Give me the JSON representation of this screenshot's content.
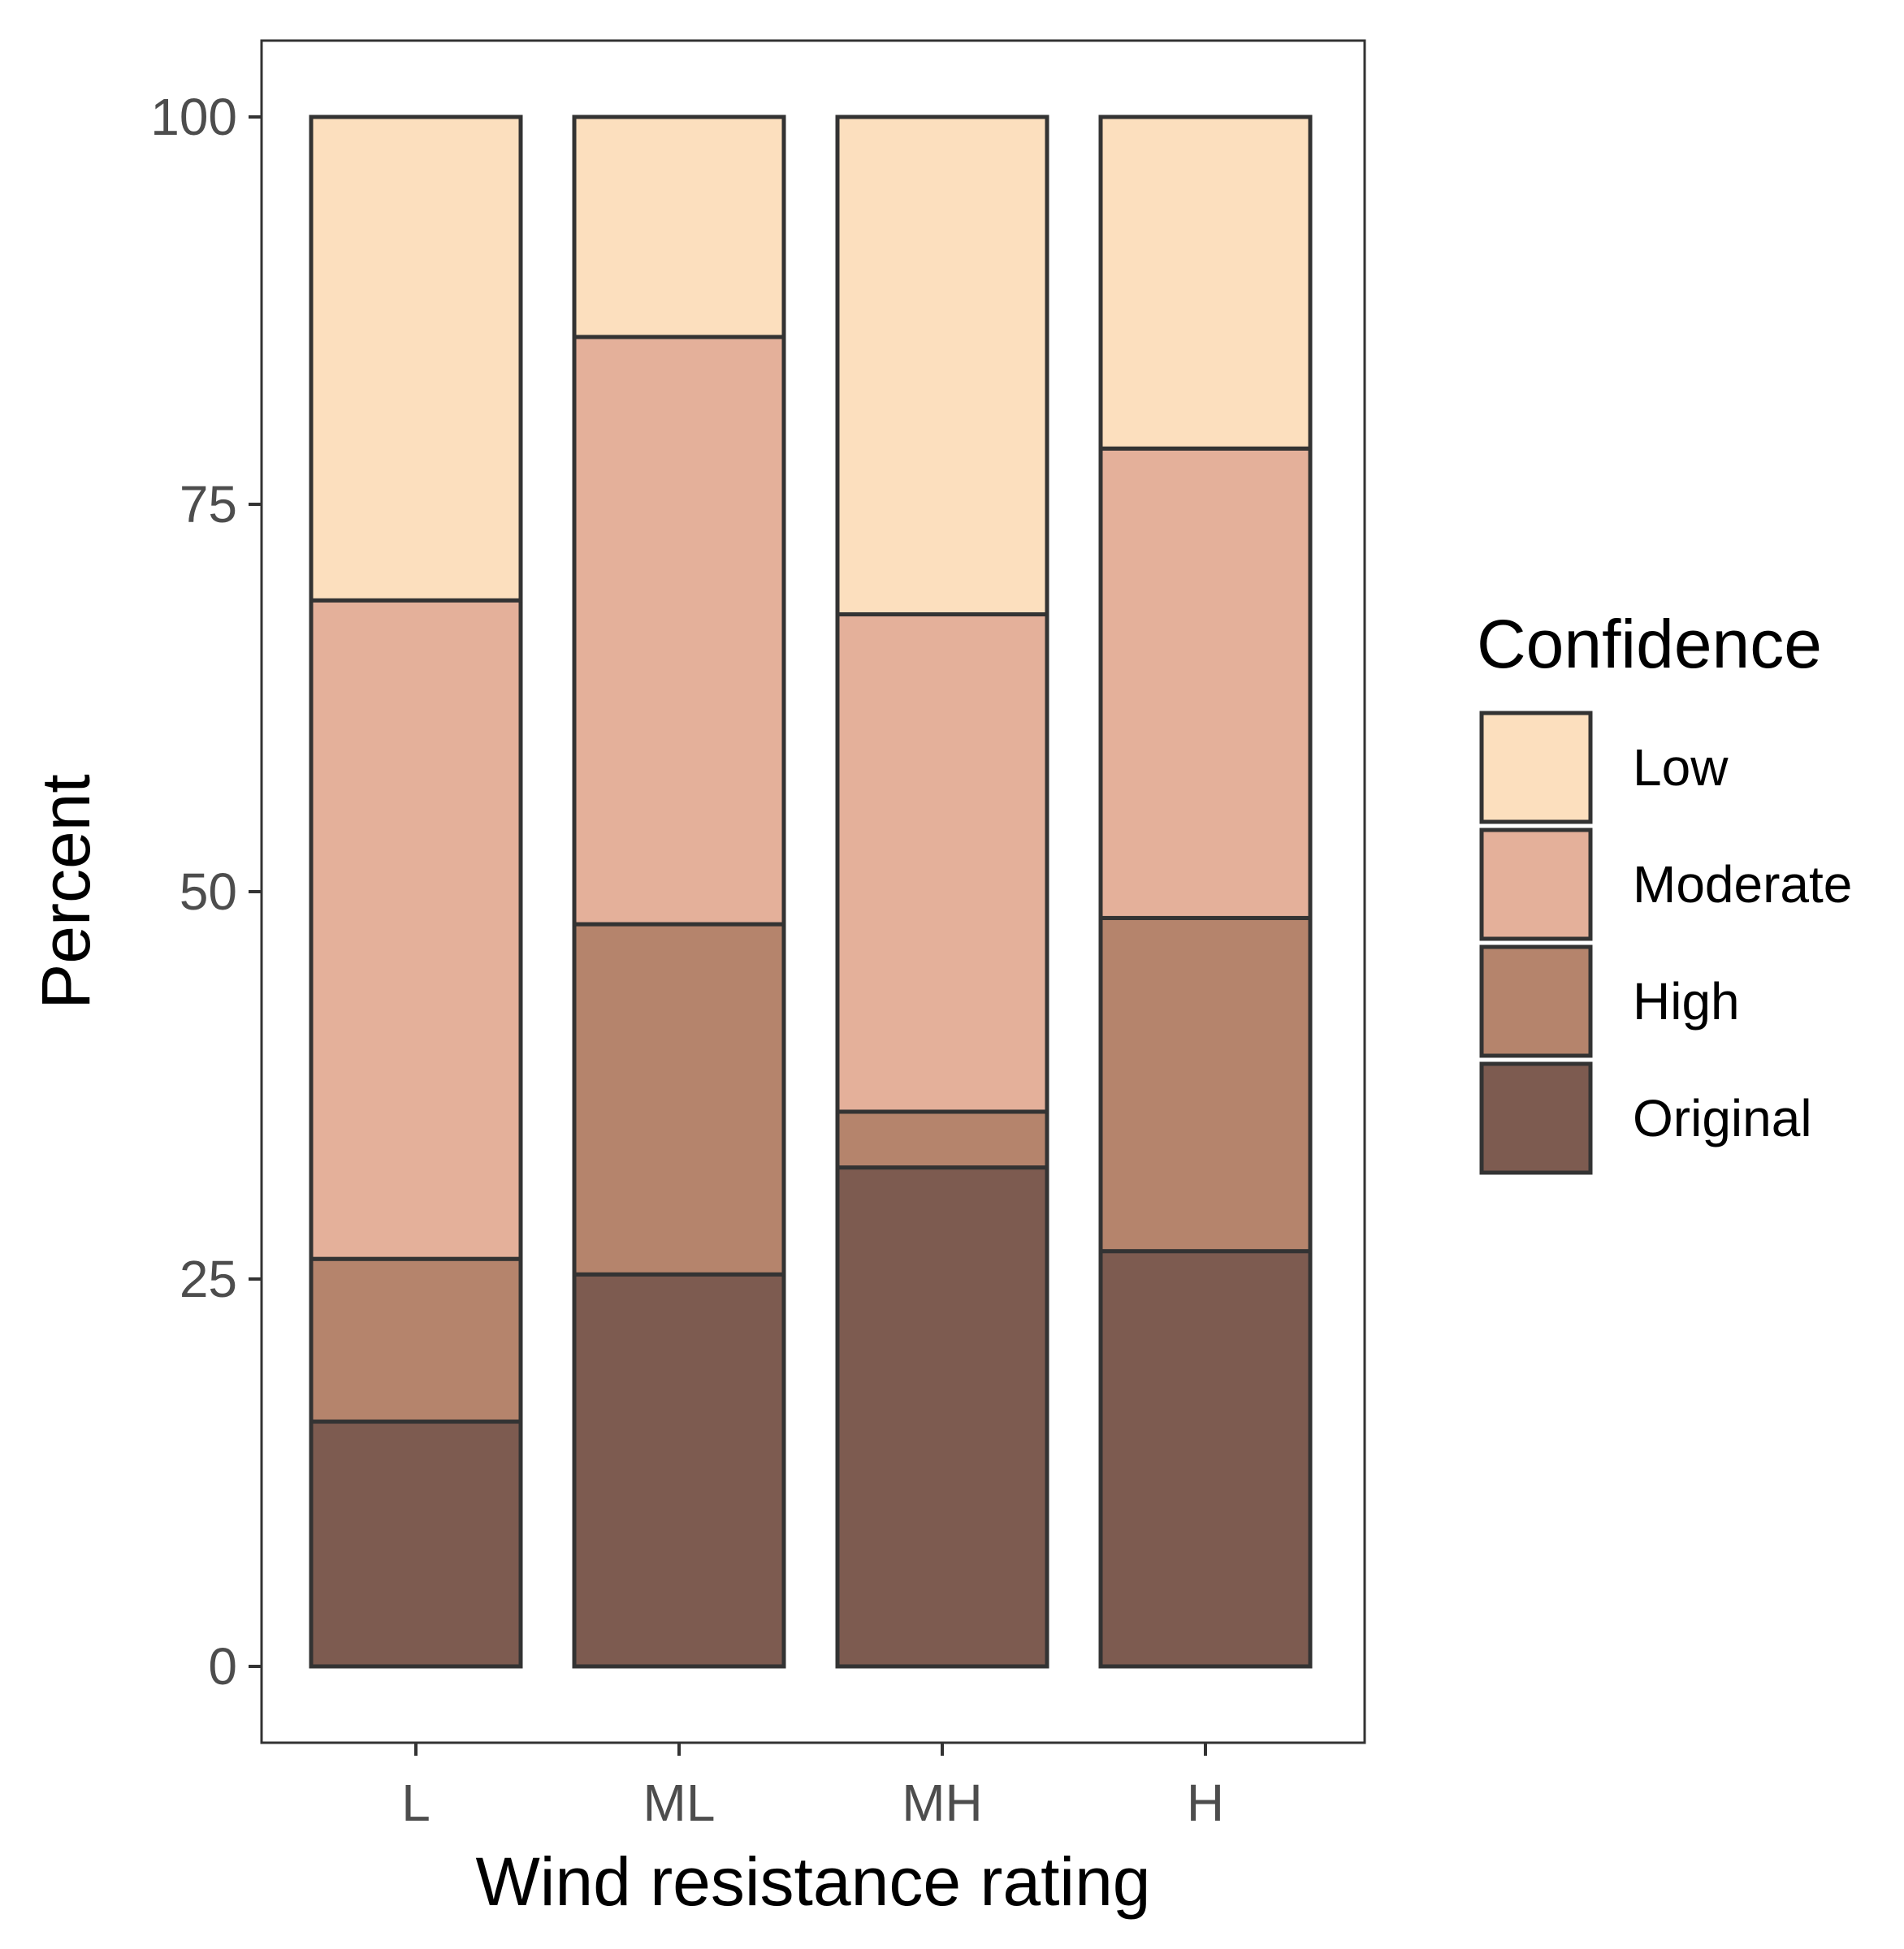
{
  "chart_data": {
    "type": "bar",
    "stacked": true,
    "categories": [
      "L",
      "ML",
      "MH",
      "H"
    ],
    "xlabel": "Wind resistance rating",
    "ylabel": "Percent",
    "ylim": [
      0,
      100
    ],
    "yticks": [
      0,
      25,
      50,
      75,
      100
    ],
    "grid": false,
    "legend": {
      "title": "Confidence",
      "placement": "right",
      "order": [
        "Low",
        "Moderate",
        "High",
        "Original"
      ]
    },
    "series": [
      {
        "name": "Original",
        "color": "#7d5b50",
        "values": [
          15.8,
          25.3,
          32.2,
          26.8
        ]
      },
      {
        "name": "High",
        "color": "#b5846c",
        "values": [
          10.5,
          22.6,
          3.6,
          21.5
        ]
      },
      {
        "name": "Moderate",
        "color": "#e4b09a",
        "values": [
          42.5,
          37.9,
          32.1,
          30.3
        ]
      },
      {
        "name": "Low",
        "color": "#fcdfbe",
        "values": [
          31.2,
          14.2,
          32.1,
          21.4
        ]
      }
    ]
  }
}
